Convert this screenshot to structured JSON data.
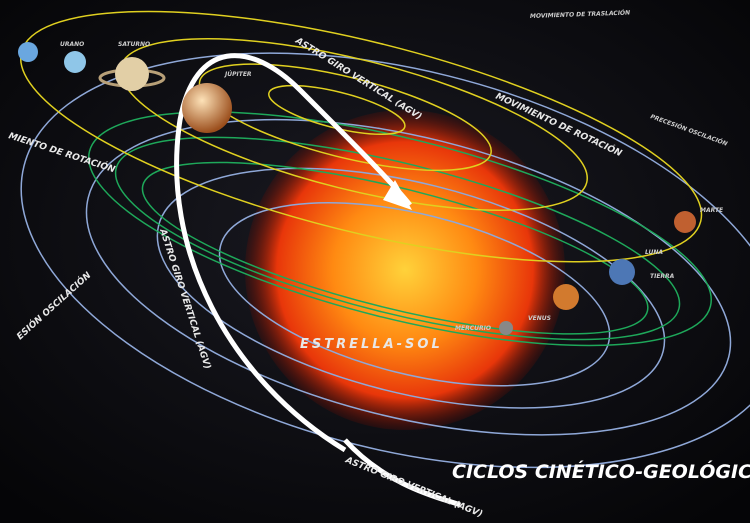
{
  "title": "CICLOS CINÉTICO-GEOLÓGICO",
  "labels": [
    "MOVIMIENTO DE TRASLACIÓN",
    "URANO",
    "SATURNO",
    "JÚPITER",
    "ASTRO GIRO VERTICAL (AGV)",
    "MOVIMIENTO DE ROTACIÓN",
    "MIENTO DE ROTACIÓN",
    "PRECESIÓN OSCILACIÓN",
    "MARTE",
    "LUNA",
    "TIERRA",
    "VENUS",
    "MERCURIO",
    "ESTRELLA-SOL",
    "ESIÓN OSCILACIÓN",
    "ASTRO GIRO VERTICAL (AGV)",
    "ASTRO GIRO VERTICAL (AGV)"
  ]
}
